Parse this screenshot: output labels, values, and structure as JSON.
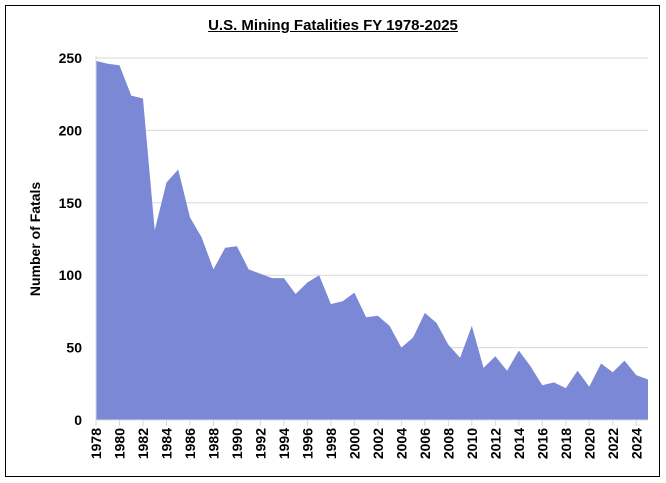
{
  "chart_data": {
    "type": "area",
    "title": "U.S. Mining Fatalities FY 1978-2025",
    "xlabel": "",
    "ylabel": "Number of Fatals",
    "ylim": [
      0,
      250
    ],
    "yticks": [
      0,
      50,
      100,
      150,
      200,
      250
    ],
    "xlim": [
      1978,
      2025
    ],
    "xtick_step": 2,
    "grid": "horizontal",
    "color": "#7b88d6",
    "x": [
      1978,
      1979,
      1980,
      1981,
      1982,
      1983,
      1984,
      1985,
      1986,
      1987,
      1988,
      1989,
      1990,
      1991,
      1992,
      1993,
      1994,
      1995,
      1996,
      1997,
      1998,
      1999,
      2000,
      2001,
      2002,
      2003,
      2004,
      2005,
      2006,
      2007,
      2008,
      2009,
      2010,
      2011,
      2012,
      2013,
      2014,
      2015,
      2016,
      2017,
      2018,
      2019,
      2020,
      2021,
      2022,
      2023,
      2024,
      2025
    ],
    "values": [
      248,
      246,
      245,
      224,
      222,
      131,
      164,
      173,
      140,
      126,
      104,
      119,
      120,
      104,
      101,
      98,
      98,
      87,
      95,
      100,
      80,
      82,
      88,
      71,
      72,
      65,
      50,
      57,
      74,
      67,
      52,
      43,
      65,
      36,
      44,
      34,
      48,
      37,
      24,
      26,
      22,
      34,
      23,
      39,
      33,
      41,
      31,
      28
    ]
  }
}
